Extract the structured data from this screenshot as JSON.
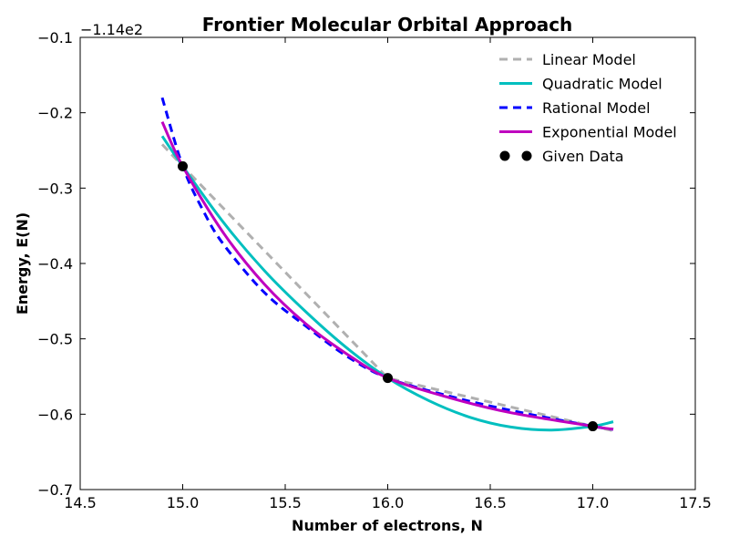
{
  "chart_data": {
    "type": "line",
    "title": "Frontier Molecular Orbital Approach",
    "xlabel": "Number of electrons, N",
    "ylabel": "Energy, E(N)",
    "y_offset_label": "−1.14e2",
    "xlim": [
      14.5,
      17.5
    ],
    "ylim": [
      -0.7,
      -0.1
    ],
    "x_ticks": [
      14.5,
      15.0,
      15.5,
      16.0,
      16.5,
      17.0,
      17.5
    ],
    "x_tick_labels": [
      "14.5",
      "15.0",
      "15.5",
      "16.0",
      "16.5",
      "17.0",
      "17.5"
    ],
    "y_ticks": [
      -0.1,
      -0.2,
      -0.3,
      -0.4,
      -0.5,
      -0.6,
      -0.7
    ],
    "y_tick_labels": [
      "−0.1",
      "−0.2",
      "−0.3",
      "−0.4",
      "−0.5",
      "−0.6",
      "−0.7"
    ],
    "grid": false,
    "legend_position": "top-right",
    "series": [
      {
        "name": "Linear Model",
        "style": "dashed",
        "color": "#b0b0b0",
        "x": [
          14.9,
          15.0,
          16.0,
          17.0,
          17.1
        ],
        "y": [
          -0.242,
          -0.271,
          -0.552,
          -0.616,
          -0.622
        ]
      },
      {
        "name": "Quadratic Model",
        "style": "solid",
        "color": "#00bfbf",
        "x": [
          14.9,
          15.0,
          15.2,
          15.4,
          15.6,
          15.8,
          16.0,
          16.2,
          16.4,
          16.6,
          16.8,
          17.0,
          17.1
        ],
        "y": [
          -0.231,
          -0.271,
          -0.346,
          -0.41,
          -0.464,
          -0.512,
          -0.552,
          -0.582,
          -0.604,
          -0.617,
          -0.621,
          -0.616,
          -0.61
        ]
      },
      {
        "name": "Rational Model",
        "style": "dashed",
        "color": "#0000ff",
        "x": [
          14.9,
          15.0,
          15.1,
          15.2,
          15.4,
          15.6,
          15.8,
          16.0,
          16.3,
          16.6,
          17.0,
          17.1
        ],
        "y": [
          -0.18,
          -0.271,
          -0.33,
          -0.375,
          -0.439,
          -0.483,
          -0.523,
          -0.552,
          -0.576,
          -0.595,
          -0.616,
          -0.62
        ]
      },
      {
        "name": "Exponential Model",
        "style": "solid",
        "color": "#bf00bf",
        "x": [
          14.9,
          15.0,
          15.2,
          15.4,
          15.6,
          15.8,
          16.0,
          16.3,
          16.6,
          17.0,
          17.1
        ],
        "y": [
          -0.212,
          -0.271,
          -0.36,
          -0.428,
          -0.48,
          -0.52,
          -0.552,
          -0.578,
          -0.598,
          -0.616,
          -0.62
        ]
      },
      {
        "name": "Given Data",
        "style": "markers",
        "color": "#000000",
        "x": [
          15.0,
          16.0,
          17.0
        ],
        "y": [
          -0.271,
          -0.552,
          -0.616
        ]
      }
    ]
  }
}
